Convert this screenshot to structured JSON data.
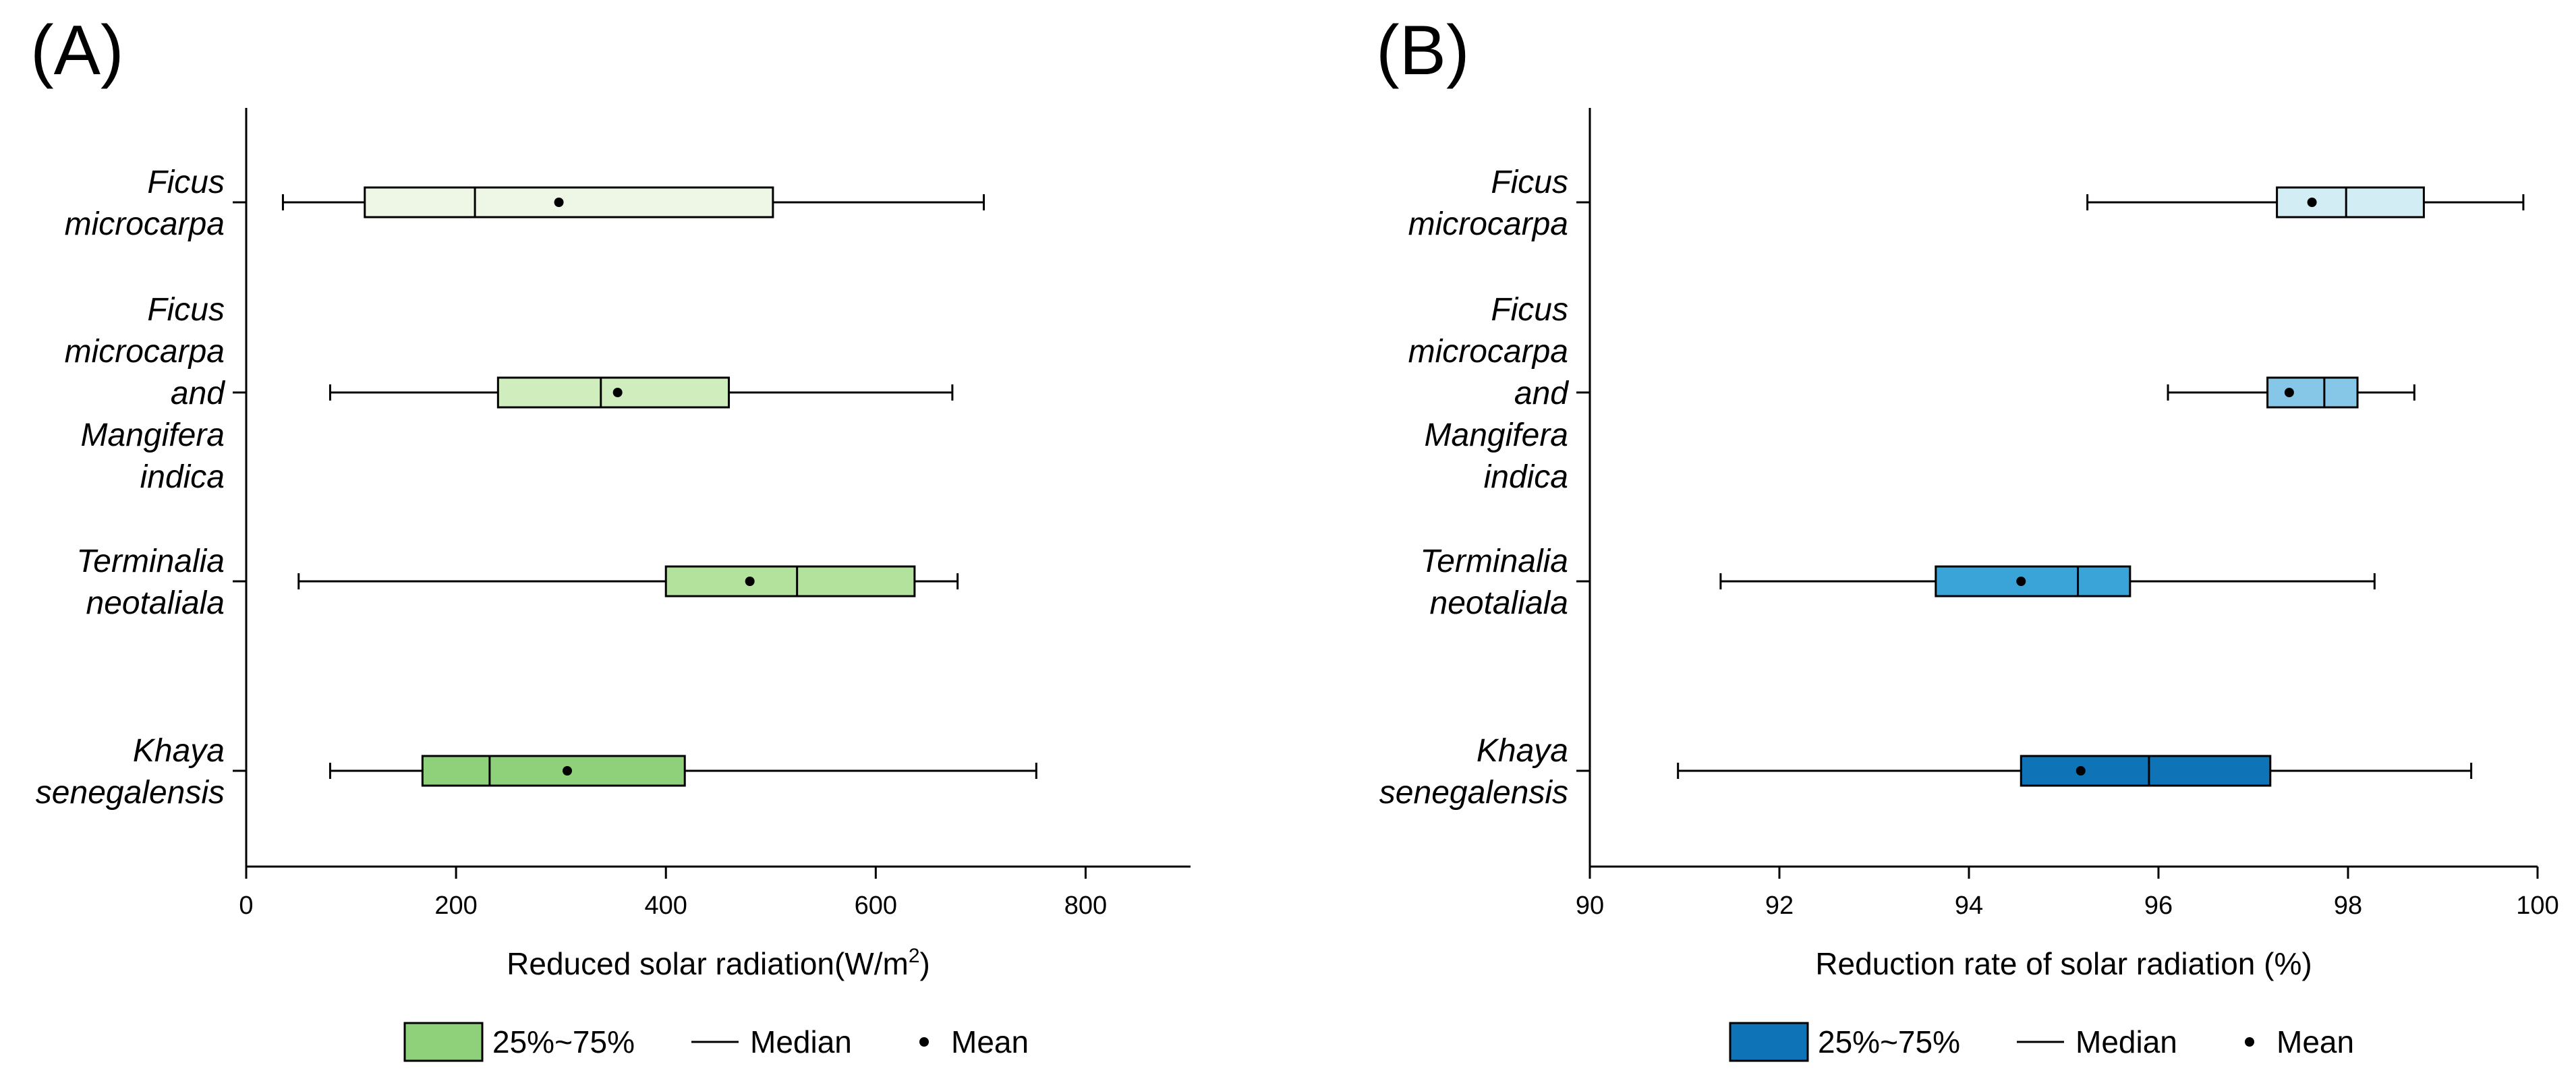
{
  "chart_data": [
    {
      "type": "box",
      "panel_label": "(A)",
      "orientation": "horizontal",
      "xlabel": "Reduced solar radiation(W/m",
      "xlabel_superscript": "2",
      "xlabel_suffix": ")",
      "xlim": [
        0,
        900
      ],
      "xticks": [
        0,
        200,
        400,
        600,
        800
      ],
      "tick_labels": [
        "0",
        "200",
        "400",
        "600",
        "800"
      ],
      "categories": [
        {
          "label_lines": [
            "Ficus",
            "microcarpa"
          ],
          "min": 35,
          "q1": 113,
          "median": 218,
          "q3": 502,
          "max": 703,
          "mean": 298,
          "color": "#eef7e6"
        },
        {
          "label_lines": [
            "Ficus",
            "microcarpa",
            "and",
            "Mangifera",
            "indica"
          ],
          "min": 80,
          "q1": 240,
          "median": 338,
          "q3": 460,
          "max": 673,
          "mean": 354,
          "color": "#d0edbd"
        },
        {
          "label_lines": [
            "Terminalia",
            "neotaliala"
          ],
          "min": 50,
          "q1": 400,
          "median": 525,
          "q3": 637,
          "max": 678,
          "mean": 480,
          "color": "#b3e29c"
        },
        {
          "label_lines": [
            "Khaya",
            "senegalensis"
          ],
          "min": 80,
          "q1": 168,
          "median": 232,
          "q3": 418,
          "max": 753,
          "mean": 306,
          "color": "#8fd17a"
        }
      ],
      "legend": {
        "box_label": "25%~75%",
        "median_label": "Median",
        "mean_label": "Mean",
        "box_color": "#8fd17a"
      }
    },
    {
      "type": "box",
      "panel_label": "(B)",
      "orientation": "horizontal",
      "xlabel": "Reduction rate of solar radiation (%)",
      "xlabel_superscript": "",
      "xlabel_suffix": "",
      "xlim": [
        90,
        100
      ],
      "xticks": [
        90,
        92,
        94,
        96,
        98,
        100
      ],
      "tick_labels": [
        "90",
        "92",
        "94",
        "96",
        "98",
        "100"
      ],
      "categories": [
        {
          "label_lines": [
            "Ficus",
            "microcarpa"
          ],
          "min": 95.25,
          "q1": 97.25,
          "median": 97.98,
          "q3": 98.8,
          "max": 99.85,
          "mean": 97.62,
          "color": "#d2eef4"
        },
        {
          "label_lines": [
            "Ficus",
            "microcarpa",
            "and",
            "Mangifera",
            "indica"
          ],
          "min": 96.1,
          "q1": 97.15,
          "median": 97.75,
          "q3": 98.1,
          "max": 98.7,
          "mean": 97.38,
          "color": "#86c6e6"
        },
        {
          "label_lines": [
            "Terminalia",
            "neotaliala"
          ],
          "min": 91.38,
          "q1": 93.65,
          "median": 95.15,
          "q3": 95.7,
          "max": 98.28,
          "mean": 94.55,
          "color": "#3aa4d8"
        },
        {
          "label_lines": [
            "Khaya",
            "senegalensis"
          ],
          "min": 90.93,
          "q1": 94.55,
          "median": 95.9,
          "q3": 97.18,
          "max": 99.3,
          "mean": 95.18,
          "color": "#0f73b8"
        }
      ],
      "legend": {
        "box_label": "25%~75%",
        "median_label": "Median",
        "mean_label": "Mean",
        "box_color": "#0f73b8"
      }
    }
  ]
}
